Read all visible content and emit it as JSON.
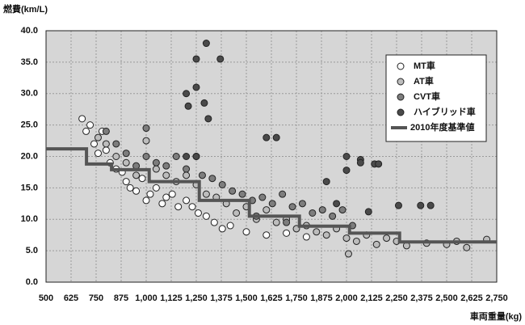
{
  "chart_data": {
    "type": "scatter",
    "ylabel": "燃費(km/L)",
    "xlabel": "車両重量(kg)",
    "xlim": [
      500,
      2750
    ],
    "ylim": [
      0,
      40
    ],
    "xticks": [
      500,
      625,
      750,
      875,
      {
        "value": 1000,
        "label": "1,000"
      },
      {
        "value": 1125,
        "label": "1,125"
      },
      {
        "value": 1250,
        "label": "1,250"
      },
      {
        "value": 1375,
        "label": "1,375"
      },
      {
        "value": 1500,
        "label": "1,500"
      },
      {
        "value": 1625,
        "label": "1,625"
      },
      {
        "value": 1750,
        "label": "1,750"
      },
      {
        "value": 1875,
        "label": "1,875"
      },
      {
        "value": 2000,
        "label": "2,000"
      },
      {
        "value": 2125,
        "label": "2,125"
      },
      {
        "value": 2250,
        "label": "2,250"
      },
      {
        "value": 2375,
        "label": "2,375"
      },
      {
        "value": 2500,
        "label": "2,500"
      },
      {
        "value": 2625,
        "label": "2,625"
      },
      {
        "value": 2750,
        "label": "2,750"
      }
    ],
    "yticks": [
      {
        "value": 0,
        "label": "0.0"
      },
      {
        "value": 5,
        "label": "5.0"
      },
      {
        "value": 10,
        "label": "10.0"
      },
      {
        "value": 15,
        "label": "15.0"
      },
      {
        "value": 20,
        "label": "20.0"
      },
      {
        "value": 25,
        "label": "25.0"
      },
      {
        "value": 30,
        "label": "30.0"
      },
      {
        "value": 35,
        "label": "35.0"
      },
      {
        "value": 40,
        "label": "40.0"
      }
    ],
    "grid": true,
    "legend": "upper right",
    "series": [
      {
        "name": "MT車",
        "color": "#ffffff",
        "x": [
          680,
          700,
          720,
          740,
          760,
          780,
          800,
          820,
          850,
          880,
          900,
          920,
          950,
          980,
          1000,
          1020,
          1050,
          1080,
          1100,
          1130,
          1160,
          1200,
          1230,
          1260,
          1300,
          1340,
          1380,
          1420,
          1500,
          1600,
          1700,
          1800
        ],
        "values": [
          26,
          24,
          25,
          22,
          20.5,
          24,
          21,
          19,
          18,
          17.5,
          16,
          15,
          14.5,
          16.5,
          13,
          14,
          15,
          12.5,
          13.5,
          14,
          12,
          13,
          12,
          11,
          10.5,
          9.5,
          8.5,
          9,
          8,
          7.5,
          7.8,
          7.2
        ]
      },
      {
        "name": "AT車",
        "color": "#bdbdbd",
        "x": [
          760,
          800,
          850,
          900,
          950,
          1000,
          1050,
          1100,
          1150,
          1200,
          1250,
          1300,
          1350,
          1400,
          1450,
          1500,
          1550,
          1600,
          1650,
          1700,
          1750,
          1800,
          1850,
          1900,
          1950,
          2000,
          2050,
          2100,
          2150,
          2200,
          2250,
          2300,
          2400,
          2500,
          2550,
          2600,
          2700,
          2010
        ],
        "values": [
          23,
          22,
          20,
          19,
          17,
          22.5,
          18,
          17,
          16,
          17,
          15.5,
          14,
          13.5,
          12.5,
          11,
          12,
          10,
          11.5,
          9.5,
          10,
          8.5,
          9,
          8,
          7.5,
          8.5,
          7,
          6.5,
          7.5,
          6,
          7,
          6.5,
          5.8,
          6.2,
          6,
          6.5,
          5.5,
          6.8,
          4.5
        ]
      },
      {
        "name": "CVT車",
        "color": "#7d7d7d",
        "x": [
          800,
          850,
          900,
          950,
          1000,
          1000,
          1050,
          1100,
          1150,
          1200,
          1250,
          1280,
          1330,
          1380,
          1430,
          1480,
          1530,
          1580,
          1630,
          1680,
          1730,
          1780,
          1830,
          1880,
          1930,
          1980,
          2030,
          1700,
          1550
        ],
        "values": [
          24,
          22,
          20.5,
          18.5,
          24.5,
          20,
          19,
          18.5,
          20,
          18,
          20,
          17,
          16.5,
          15.5,
          14.5,
          14,
          13,
          13.5,
          12.5,
          14,
          12,
          12.5,
          11,
          11.5,
          10.5,
          11.5,
          9,
          9.5,
          10.5
        ]
      },
      {
        "name": "ハイブリッド車",
        "color": "#4a4a4a",
        "x": [
          1200,
          1210,
          1250,
          1250,
          1300,
          1290,
          1310,
          1370,
          1600,
          1650,
          1900,
          1950,
          2000,
          2000,
          2070,
          2070,
          2140,
          2160,
          2260,
          2370,
          2420,
          2110,
          1200,
          1250
        ],
        "values": [
          30,
          28,
          35.5,
          31,
          38,
          28.5,
          26,
          35.5,
          23,
          23,
          16,
          12.5,
          20,
          17.8,
          19.5,
          19,
          18.8,
          18.8,
          12.2,
          12.2,
          12.2,
          11.2,
          20,
          20
        ]
      },
      {
        "name": "2010年度基準値",
        "color": "#555555",
        "type": "line",
        "x": [
          500,
          702,
          702,
          827,
          827,
          1015,
          1015,
          1265,
          1265,
          1515,
          1515,
          1765,
          1765,
          2015,
          2015,
          2265,
          2265,
          2750
        ],
        "values": [
          21.2,
          21.2,
          18.8,
          18.8,
          17.9,
          17.9,
          16.0,
          16.0,
          13.0,
          13.0,
          10.5,
          10.5,
          8.9,
          8.9,
          7.8,
          7.8,
          6.4,
          6.4
        ]
      }
    ]
  }
}
